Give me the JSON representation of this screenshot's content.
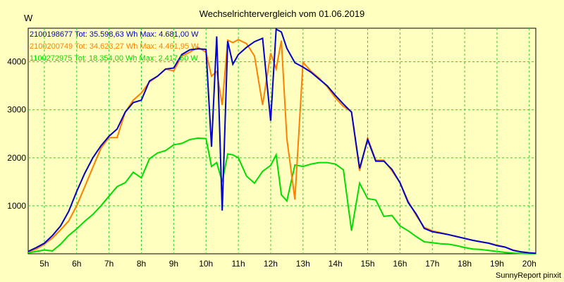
{
  "chart_data": {
    "type": "line",
    "title": "Wechselrichtervergleich vom 01.06.2019",
    "ylabel": "W",
    "xlabel": "",
    "footer": "SunnyReport pinxit",
    "xlim": [
      4.5,
      20.2
    ],
    "ylim": [
      0,
      4700
    ],
    "x_ticks": [
      {
        "v": 5,
        "label": "5h"
      },
      {
        "v": 6,
        "label": "6h"
      },
      {
        "v": 7,
        "label": "7h"
      },
      {
        "v": 8,
        "label": "8h"
      },
      {
        "v": 9,
        "label": "9h"
      },
      {
        "v": 10,
        "label": "10h"
      },
      {
        "v": 11,
        "label": "11h"
      },
      {
        "v": 12,
        "label": "12h"
      },
      {
        "v": 13,
        "label": "13h"
      },
      {
        "v": 14,
        "label": "14h"
      },
      {
        "v": 15,
        "label": "15h"
      },
      {
        "v": 16,
        "label": "16h"
      },
      {
        "v": 17,
        "label": "17h"
      },
      {
        "v": 18,
        "label": "18h"
      },
      {
        "v": 19,
        "label": "19h"
      },
      {
        "v": 20,
        "label": "20h"
      }
    ],
    "y_ticks": [
      {
        "v": 1000,
        "label": "1000"
      },
      {
        "v": 2000,
        "label": "2000"
      },
      {
        "v": 3000,
        "label": "3000"
      },
      {
        "v": 4000,
        "label": "4000"
      }
    ],
    "grid": true,
    "series": [
      {
        "name": "2100198677 Tot: 35.598,63 Wh Max: 4.681,00 W",
        "color": "#0000cc",
        "x": [
          4.5,
          4.75,
          5,
          5.25,
          5.5,
          5.75,
          6,
          6.25,
          6.5,
          6.75,
          7,
          7.25,
          7.5,
          7.75,
          8,
          8.25,
          8.5,
          8.75,
          9,
          9.25,
          9.5,
          9.75,
          10,
          10.17,
          10.33,
          10.5,
          10.67,
          10.83,
          11,
          11.25,
          11.5,
          11.75,
          12,
          12.17,
          12.33,
          12.5,
          12.75,
          13,
          13.25,
          13.5,
          13.75,
          14,
          14.25,
          14.5,
          14.75,
          15,
          15.25,
          15.5,
          15.75,
          16,
          16.25,
          16.5,
          16.75,
          17,
          17.25,
          17.5,
          17.75,
          18,
          18.25,
          18.5,
          18.75,
          19,
          19.25,
          19.5,
          19.75,
          20,
          20.2
        ],
        "values": [
          50,
          130,
          220,
          380,
          580,
          880,
          1300,
          1680,
          2000,
          2250,
          2450,
          2600,
          2950,
          3150,
          3200,
          3600,
          3700,
          3850,
          3870,
          4150,
          4250,
          4270,
          4260,
          2230,
          4530,
          900,
          4430,
          3950,
          4150,
          4300,
          4420,
          4490,
          2770,
          4680,
          4620,
          4280,
          3980,
          3890,
          3780,
          3640,
          3500,
          3300,
          3120,
          2950,
          1780,
          2380,
          1930,
          1930,
          1760,
          1480,
          1070,
          830,
          530,
          460,
          430,
          400,
          360,
          320,
          280,
          250,
          220,
          170,
          140,
          70,
          40,
          20,
          10
        ]
      },
      {
        "name": "2100200749 Tot: 34.623,27 Wh Max: 4.461,95 W",
        "color": "#ff8000",
        "x": [
          4.5,
          4.75,
          5,
          5.25,
          5.5,
          5.75,
          6,
          6.25,
          6.5,
          6.75,
          7,
          7.25,
          7.5,
          7.75,
          8,
          8.25,
          8.5,
          8.75,
          9,
          9.25,
          9.5,
          9.75,
          10,
          10.17,
          10.33,
          10.5,
          10.67,
          10.83,
          11,
          11.25,
          11.5,
          11.75,
          12,
          12.17,
          12.33,
          12.5,
          12.75,
          13,
          13.25,
          13.5,
          13.75,
          14,
          14.25,
          14.5,
          14.75,
          15,
          15.25,
          15.5,
          15.75,
          16,
          16.25,
          16.5,
          16.75,
          17,
          17.25,
          17.5,
          17.75,
          18,
          18.25,
          18.5,
          18.75,
          19,
          19.25,
          19.5,
          19.75,
          20,
          20.2
        ],
        "values": [
          40,
          100,
          200,
          330,
          500,
          680,
          1000,
          1400,
          1800,
          2200,
          2420,
          2420,
          2950,
          3200,
          3350,
          3580,
          3700,
          3850,
          3810,
          4120,
          4200,
          4300,
          4200,
          3700,
          3800,
          3100,
          4450,
          4400,
          4460,
          4380,
          4120,
          3100,
          4180,
          3850,
          4440,
          2400,
          1130,
          3990,
          3800,
          3660,
          3480,
          3250,
          3070,
          2960,
          1730,
          2410,
          1950,
          1950,
          1730,
          1480,
          1100,
          800,
          550,
          480,
          440,
          400,
          360,
          320,
          280,
          250,
          220,
          180,
          140,
          80,
          40,
          20,
          10
        ]
      },
      {
        "name": "1100272975 Tot: 18.354,00 Wh Max: 2.417,60 W",
        "color": "#00dd00",
        "x": [
          4.5,
          4.75,
          5,
          5.25,
          5.5,
          5.75,
          6,
          6.25,
          6.5,
          6.75,
          7,
          7.25,
          7.5,
          7.75,
          8,
          8.25,
          8.5,
          8.75,
          9,
          9.25,
          9.5,
          9.75,
          10,
          10.17,
          10.33,
          10.5,
          10.67,
          10.83,
          11,
          11.25,
          11.5,
          11.75,
          12,
          12.17,
          12.33,
          12.5,
          12.75,
          13,
          13.25,
          13.5,
          13.75,
          14,
          14.25,
          14.5,
          14.75,
          15,
          15.25,
          15.5,
          15.75,
          16,
          16.25,
          16.5,
          16.75,
          17,
          17.25,
          17.5,
          17.75,
          18,
          18.25,
          18.5,
          18.75,
          19,
          19.25,
          19.5,
          19.75,
          20,
          20.2
        ],
        "values": [
          20,
          50,
          80,
          60,
          200,
          380,
          520,
          680,
          820,
          1000,
          1200,
          1400,
          1480,
          1700,
          1580,
          1980,
          2100,
          2150,
          2270,
          2300,
          2380,
          2410,
          2400,
          1820,
          1900,
          1500,
          2080,
          2060,
          2000,
          1620,
          1470,
          1720,
          1840,
          2060,
          1230,
          1100,
          1850,
          1820,
          1870,
          1900,
          1900,
          1870,
          1750,
          480,
          1470,
          1150,
          1120,
          780,
          800,
          580,
          480,
          360,
          250,
          230,
          210,
          200,
          170,
          130,
          100,
          90,
          70,
          50,
          30,
          15,
          8,
          5,
          3
        ]
      }
    ]
  }
}
